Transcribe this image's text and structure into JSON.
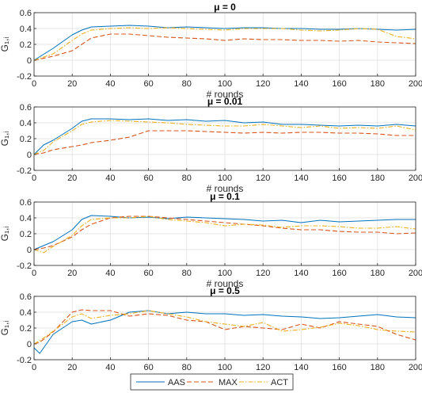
{
  "colors": {
    "AAS": "#0072BD",
    "MAX": "#D95319",
    "ACT": "#EDB120"
  },
  "legend": {
    "placement": "bottom-center",
    "entries": [
      "AAS",
      "MAX",
      "ACT"
    ]
  },
  "chart_data": [
    {
      "type": "line",
      "title": "μ = 0",
      "xlabel": "# rounds",
      "ylabel": "G₁,ᵢ",
      "xlim": [
        0,
        200
      ],
      "ylim": [
        -0.2,
        0.6
      ],
      "xticks": [
        0,
        20,
        40,
        60,
        80,
        100,
        120,
        140,
        160,
        180,
        200
      ],
      "yticks": [
        -0.2,
        0,
        0.2,
        0.4,
        0.6
      ],
      "grid": true,
      "x": [
        0,
        10,
        20,
        25,
        30,
        40,
        50,
        60,
        70,
        80,
        90,
        100,
        110,
        120,
        130,
        140,
        150,
        160,
        170,
        180,
        190,
        200
      ],
      "series": [
        {
          "name": "AAS",
          "values": [
            0.0,
            0.15,
            0.32,
            0.38,
            0.42,
            0.43,
            0.44,
            0.43,
            0.41,
            0.42,
            0.41,
            0.4,
            0.41,
            0.41,
            0.4,
            0.4,
            0.39,
            0.39,
            0.4,
            0.39,
            0.38,
            0.39
          ]
        },
        {
          "name": "MAX",
          "values": [
            0.0,
            0.05,
            0.12,
            0.2,
            0.28,
            0.33,
            0.33,
            0.31,
            0.29,
            0.28,
            0.27,
            0.25,
            0.27,
            0.26,
            0.26,
            0.25,
            0.25,
            0.24,
            0.25,
            0.23,
            0.22,
            0.21
          ]
        },
        {
          "name": "ACT",
          "values": [
            0.0,
            0.08,
            0.25,
            0.33,
            0.38,
            0.4,
            0.41,
            0.4,
            0.41,
            0.4,
            0.39,
            0.38,
            0.4,
            0.4,
            0.4,
            0.38,
            0.37,
            0.38,
            0.4,
            0.39,
            0.3,
            0.27
          ]
        }
      ]
    },
    {
      "type": "line",
      "title": "μ = 0.01",
      "xlabel": "# rounds",
      "ylabel": "G₁,ᵢ",
      "xlim": [
        0,
        200
      ],
      "ylim": [
        -0.2,
        0.6
      ],
      "xticks": [
        0,
        20,
        40,
        60,
        80,
        100,
        120,
        140,
        160,
        180,
        200
      ],
      "yticks": [
        -0.2,
        0,
        0.2,
        0.4,
        0.6
      ],
      "grid": true,
      "x": [
        0,
        5,
        10,
        20,
        25,
        30,
        40,
        50,
        60,
        70,
        80,
        90,
        100,
        110,
        120,
        130,
        140,
        150,
        160,
        170,
        180,
        190,
        200
      ],
      "series": [
        {
          "name": "AAS",
          "values": [
            0.0,
            0.12,
            0.18,
            0.33,
            0.42,
            0.45,
            0.45,
            0.44,
            0.45,
            0.43,
            0.44,
            0.42,
            0.43,
            0.4,
            0.41,
            0.38,
            0.38,
            0.37,
            0.36,
            0.37,
            0.36,
            0.38,
            0.36
          ]
        },
        {
          "name": "MAX",
          "values": [
            0.0,
            0.02,
            0.06,
            0.1,
            0.12,
            0.15,
            0.18,
            0.22,
            0.3,
            0.3,
            0.3,
            0.29,
            0.28,
            0.27,
            0.28,
            0.27,
            0.28,
            0.28,
            0.27,
            0.27,
            0.26,
            0.24,
            0.24
          ]
        },
        {
          "name": "ACT",
          "values": [
            0.0,
            0.05,
            0.16,
            0.3,
            0.38,
            0.41,
            0.43,
            0.42,
            0.41,
            0.4,
            0.38,
            0.37,
            0.36,
            0.36,
            0.38,
            0.36,
            0.34,
            0.36,
            0.33,
            0.34,
            0.33,
            0.36,
            0.31
          ]
        }
      ]
    },
    {
      "type": "line",
      "title": "μ = 0.1",
      "xlabel": "# rounds",
      "ylabel": "G₁,ᵢ",
      "xlim": [
        0,
        200
      ],
      "ylim": [
        -0.2,
        0.6
      ],
      "xticks": [
        0,
        20,
        40,
        60,
        80,
        100,
        120,
        140,
        160,
        180,
        200
      ],
      "yticks": [
        -0.2,
        0,
        0.2,
        0.4,
        0.6
      ],
      "grid": true,
      "x": [
        0,
        5,
        10,
        20,
        25,
        30,
        40,
        50,
        60,
        70,
        80,
        90,
        100,
        110,
        120,
        130,
        140,
        150,
        160,
        170,
        180,
        190,
        200
      ],
      "series": [
        {
          "name": "AAS",
          "values": [
            0.0,
            0.05,
            0.1,
            0.25,
            0.38,
            0.43,
            0.42,
            0.4,
            0.41,
            0.39,
            0.41,
            0.4,
            0.39,
            0.38,
            0.36,
            0.37,
            0.34,
            0.37,
            0.35,
            0.36,
            0.37,
            0.38,
            0.38
          ]
        },
        {
          "name": "MAX",
          "values": [
            0.0,
            0.02,
            0.05,
            0.16,
            0.25,
            0.32,
            0.4,
            0.42,
            0.42,
            0.4,
            0.38,
            0.36,
            0.34,
            0.32,
            0.3,
            0.27,
            0.25,
            0.25,
            0.23,
            0.22,
            0.22,
            0.2,
            0.21
          ]
        },
        {
          "name": "ACT",
          "values": [
            0.0,
            -0.04,
            0.04,
            0.18,
            0.3,
            0.38,
            0.4,
            0.4,
            0.42,
            0.38,
            0.36,
            0.34,
            0.3,
            0.32,
            0.31,
            0.28,
            0.3,
            0.3,
            0.29,
            0.27,
            0.27,
            0.29,
            0.26
          ]
        }
      ]
    },
    {
      "type": "line",
      "title": "μ = 0.5",
      "xlabel": "# rounds",
      "ylabel": "G₁,ᵢ",
      "xlim": [
        0,
        200
      ],
      "ylim": [
        -0.2,
        0.6
      ],
      "xticks": [
        0,
        20,
        40,
        60,
        80,
        100,
        120,
        140,
        160,
        180,
        200
      ],
      "yticks": [
        -0.2,
        0,
        0.2,
        0.4,
        0.6
      ],
      "grid": true,
      "x": [
        0,
        3,
        10,
        20,
        25,
        30,
        40,
        50,
        60,
        70,
        80,
        90,
        100,
        110,
        120,
        130,
        140,
        150,
        160,
        170,
        180,
        190,
        200
      ],
      "series": [
        {
          "name": "AAS",
          "values": [
            -0.05,
            -0.12,
            0.12,
            0.28,
            0.3,
            0.25,
            0.3,
            0.4,
            0.42,
            0.38,
            0.4,
            0.38,
            0.38,
            0.36,
            0.37,
            0.35,
            0.34,
            0.32,
            0.33,
            0.35,
            0.37,
            0.34,
            0.33
          ]
        },
        {
          "name": "MAX",
          "values": [
            0.0,
            0.02,
            0.15,
            0.4,
            0.43,
            0.42,
            0.42,
            0.35,
            0.38,
            0.36,
            0.3,
            0.28,
            0.18,
            0.22,
            0.2,
            0.18,
            0.25,
            0.2,
            0.28,
            0.25,
            0.22,
            0.12,
            0.05
          ]
        },
        {
          "name": "ACT",
          "values": [
            0.0,
            0.04,
            0.16,
            0.34,
            0.38,
            0.32,
            0.36,
            0.38,
            0.42,
            0.38,
            0.34,
            0.28,
            0.25,
            0.22,
            0.27,
            0.16,
            0.18,
            0.21,
            0.26,
            0.23,
            0.18,
            0.16,
            0.15
          ]
        }
      ]
    }
  ]
}
